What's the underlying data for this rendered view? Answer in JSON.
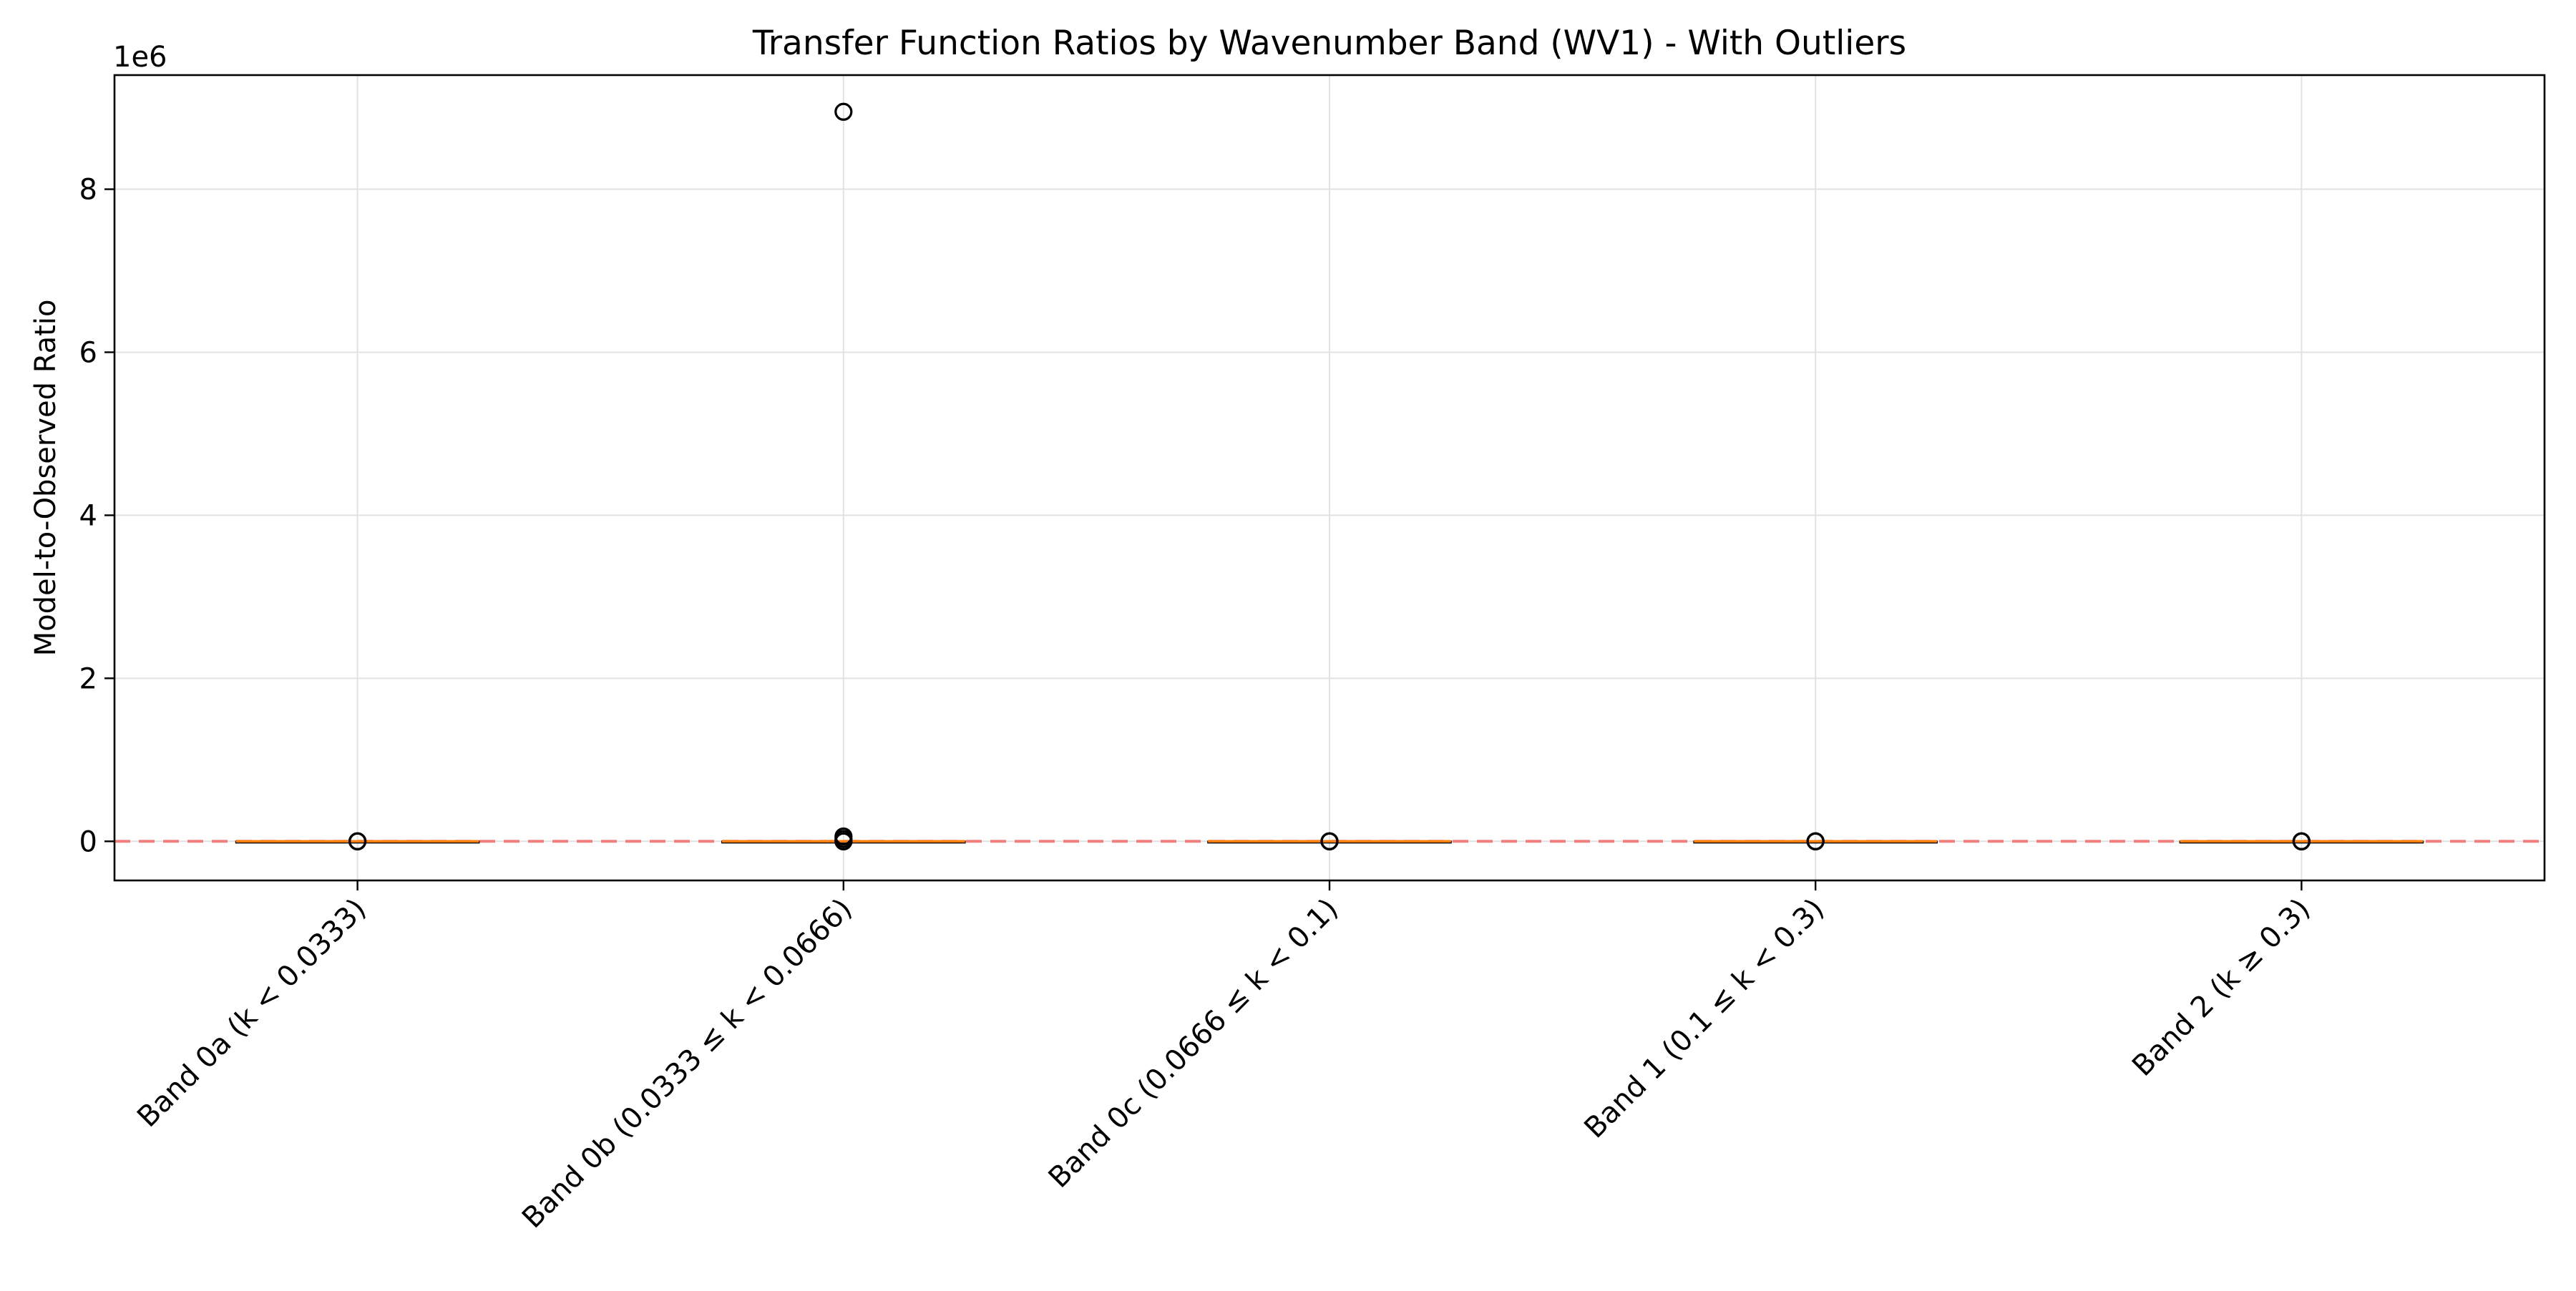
{
  "chart_data": {
    "type": "box",
    "title": "Transfer Function Ratios by Wavenumber Band (WV1) - With Outliers",
    "xlabel": "",
    "ylabel": "Model-to-Observed Ratio",
    "y_offset_label": "1e6",
    "y_scale": 1000000,
    "ylim": [
      -480000,
      9400000
    ],
    "yticks": [
      0,
      2000000,
      4000000,
      6000000,
      8000000
    ],
    "ytick_labels": [
      "0",
      "2",
      "4",
      "6",
      "8"
    ],
    "grid": true,
    "reference_line": {
      "y": 1,
      "color": "#f08080",
      "style": "dashed"
    },
    "median_color": "#ff7f0e",
    "categories": [
      "Band 0a (k < 0.0333)",
      "Band 0b (0.0333 ≤ k < 0.0666)",
      "Band 0c (0.0666 ≤ k < 0.1)",
      "Band 1 (0.1 ≤ k < 0.3)",
      "Band 2 (k ≥ 0.3)"
    ],
    "boxes": [
      {
        "category": "Band 0a (k < 0.0333)",
        "q1": 0.5,
        "median": 1,
        "q3": 2,
        "whisker_low": 0,
        "whisker_high": 5,
        "outliers": [
          10,
          40,
          120
        ]
      },
      {
        "category": "Band 0b (0.0333 ≤ k < 0.0666)",
        "q1": 0.5,
        "median": 1,
        "q3": 2,
        "whisker_low": 0,
        "whisker_high": 5,
        "outliers": [
          20,
          80,
          30000,
          60000,
          8950000
        ]
      },
      {
        "category": "Band 0c (0.0666 ≤ k < 0.1)",
        "q1": 0.5,
        "median": 1,
        "q3": 2,
        "whisker_low": 0,
        "whisker_high": 5,
        "outliers": [
          15,
          60,
          200
        ]
      },
      {
        "category": "Band 1 (0.1 ≤ k < 0.3)",
        "q1": 0.5,
        "median": 1,
        "q3": 2,
        "whisker_low": 0,
        "whisker_high": 5,
        "outliers": [
          12,
          50,
          150
        ]
      },
      {
        "category": "Band 2 (k ≥ 0.3)",
        "q1": 0.5,
        "median": 1,
        "q3": 2,
        "whisker_low": 0,
        "whisker_high": 5,
        "outliers": [
          8,
          30,
          90
        ]
      }
    ]
  }
}
